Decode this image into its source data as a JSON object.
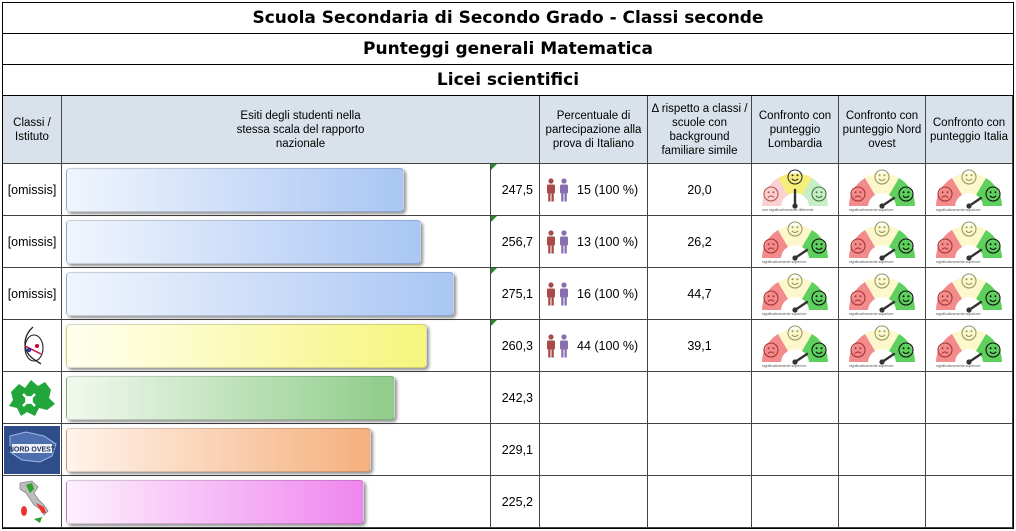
{
  "titles": {
    "school_type": "Scuola Secondaria di Secondo Grado - Classi seconde",
    "subject": "Punteggi generali Matematica",
    "school_kind": "Licei scientifici"
  },
  "headers": {
    "classes": "Classi / Istituto",
    "outcomes": "Esiti degli studenti nella stessa scala del rapporto nazionale",
    "participation": "Percentuale di partecipazione alla prova di Italiano",
    "delta": "Δ rispetto a classi / scuole con background familiare simile",
    "cmp_lombardia": "Confronto con punteggio Lombardia",
    "cmp_nordovest": "Confronto con punteggio Nord ovest",
    "cmp_italia": "Confronto con punteggio Italia"
  },
  "rows": [
    {
      "label": "[omissis]",
      "score": "247,5",
      "score_value": 247.5,
      "participation": "15 (100 %)",
      "delta": "20,0",
      "gauges": [
        {
          "level": "neutral",
          "caption": "non significativamente differente"
        },
        {
          "level": "superior",
          "caption": "significativamente superiore"
        },
        {
          "level": "superior",
          "caption": "significativamente superiore"
        }
      ],
      "bar_color": "blue"
    },
    {
      "label": "[omissis]",
      "score": "256,7",
      "score_value": 256.7,
      "participation": "13 (100 %)",
      "delta": "26,2",
      "gauges": [
        {
          "level": "superior",
          "caption": "significativamente superiore"
        },
        {
          "level": "superior",
          "caption": "significativamente superiore"
        },
        {
          "level": "superior",
          "caption": "significativamente superiore"
        }
      ],
      "bar_color": "blue"
    },
    {
      "label": "[omissis]",
      "score": "275,1",
      "score_value": 275.1,
      "participation": "16 (100 %)",
      "delta": "44,7",
      "gauges": [
        {
          "level": "superior",
          "caption": "significativamente superiore"
        },
        {
          "level": "superior",
          "caption": "significativamente superiore"
        },
        {
          "level": "superior",
          "caption": "significativamente superiore"
        }
      ],
      "bar_color": "blue"
    },
    {
      "label": "",
      "icon": "school-logo-icon",
      "score": "260,3",
      "score_value": 260.3,
      "participation": "44 (100 %)",
      "delta": "39,1",
      "gauges": [
        {
          "level": "superior",
          "caption": "significativamente superiore"
        },
        {
          "level": "superior",
          "caption": "significativamente superiore"
        },
        {
          "level": "superior",
          "caption": "significativamente superiore"
        }
      ],
      "bar_color": "yellow"
    },
    {
      "label": "",
      "icon": "lombardia-map-icon",
      "score": "242,3",
      "score_value": 242.3,
      "bar_color": "green"
    },
    {
      "label": "",
      "icon": "nord-ovest-map-icon",
      "map_text": "NORD OVEST",
      "score": "229,1",
      "score_value": 229.1,
      "bar_color": "orange"
    },
    {
      "label": "",
      "icon": "italia-map-icon",
      "score": "225,2",
      "score_value": 225.2,
      "bar_color": "pink"
    }
  ],
  "colors": {
    "header_bg": "#d9e2ea",
    "blue": [
      "#f0f5fd",
      "#a9c6f4"
    ],
    "yellow": [
      "#fffff0",
      "#f6f57c"
    ],
    "green": [
      "#f1f9ee",
      "#8fcc8a"
    ],
    "orange": [
      "#fff3ea",
      "#f5b07d"
    ],
    "pink": [
      "#fdf0fd",
      "#ef86ef"
    ]
  }
}
